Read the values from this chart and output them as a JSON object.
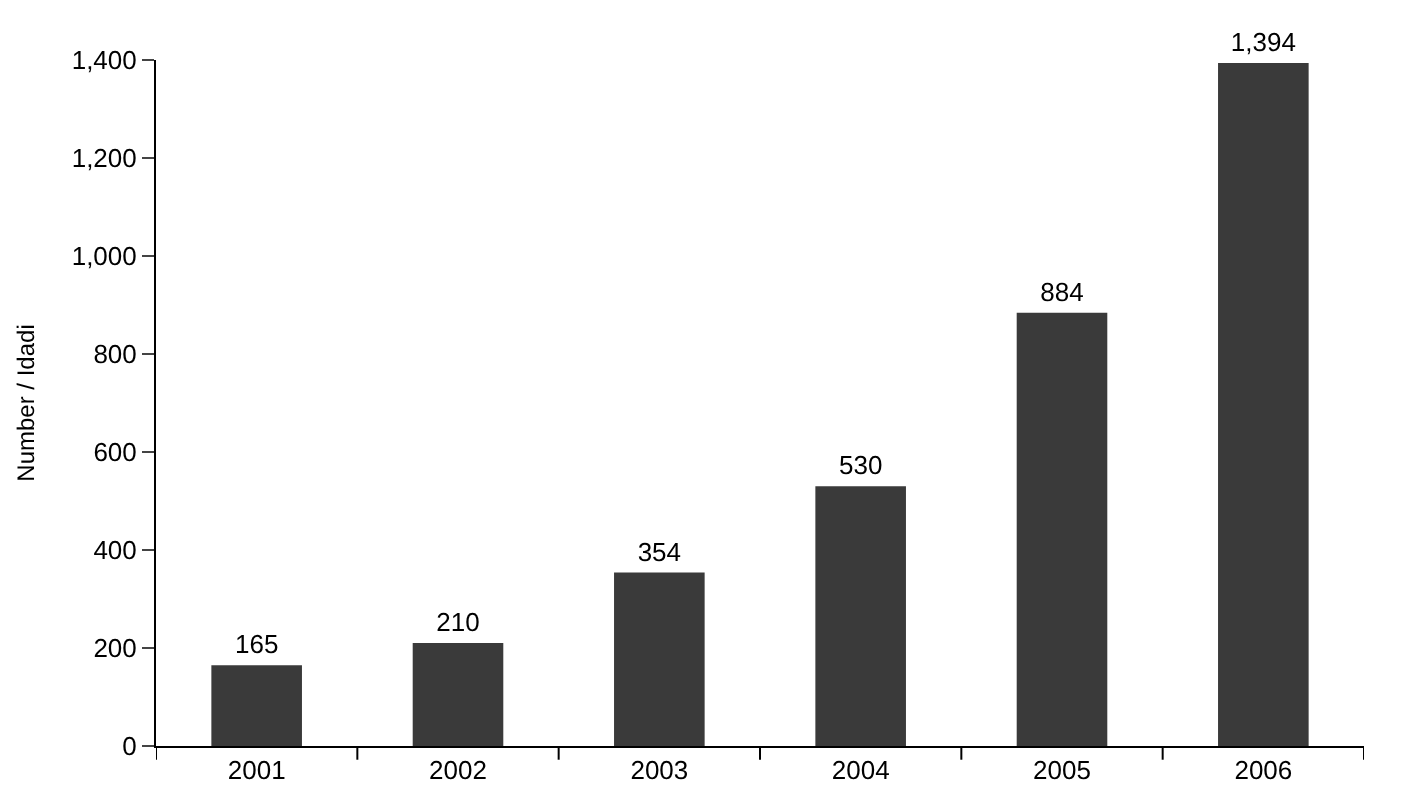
{
  "chart_data": {
    "type": "bar",
    "ylabel": "Number / Idadi",
    "categories": [
      "2001",
      "2002",
      "2003",
      "2004",
      "2005",
      "2006"
    ],
    "values": [
      165,
      210,
      354,
      530,
      884,
      1394
    ],
    "color": "#3a3a3a",
    "ylim": [
      0,
      1400
    ],
    "yticks": [
      0,
      {
        "value": 200,
        "label": "200"
      },
      {
        "value": 400,
        "label": "400"
      },
      {
        "value": 600,
        "label": "600"
      },
      {
        "value": 800,
        "label": "800"
      },
      {
        "value": 1000,
        "label": "1,000"
      },
      {
        "value": 1200,
        "label": "1,200"
      },
      {
        "value": 1400,
        "label": "1,400"
      }
    ],
    "value_labels": [
      "165",
      "210",
      "354",
      "530",
      "884",
      "1,394"
    ]
  }
}
